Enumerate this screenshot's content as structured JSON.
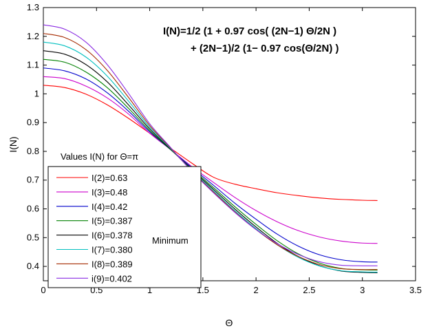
{
  "chart_data": {
    "type": "line",
    "title": "",
    "xlabel": "Θ",
    "ylabel": "I(N)",
    "xlim": [
      0,
      3.5
    ],
    "ylim": [
      0.35,
      1.3
    ],
    "xticks": [
      "0",
      "0.5",
      "1",
      "1.5",
      "2",
      "2.5",
      "3",
      "3.5"
    ],
    "yticks": [
      "0.4",
      "0.5",
      "0.6",
      "0.7",
      "0.8",
      "0.9",
      "1",
      "1.1",
      "1.2",
      "1.3"
    ],
    "grid": false,
    "legend_placement": "lower-left",
    "legend_title": "Values I(N) for Θ=π",
    "annotations": {
      "formula_line1": "I(N)=1/2 (1 + 0.97 cos( (2N−1) Θ/2N )",
      "formula_line2": "+ (2N−1)/2 (1− 0.97 cos(Θ/2N) )",
      "minimum_note": "Minimum"
    },
    "x": [
      0,
      0.2,
      0.4,
      0.6,
      0.8,
      1.0,
      1.2,
      1.4,
      1.6,
      1.8,
      2.0,
      2.2,
      2.4,
      2.6,
      2.8,
      3.0,
      3.1416
    ],
    "series": [
      {
        "name": "I(2)=0.63",
        "color": "#ff0000",
        "values": [
          1.03,
          1.022,
          0.999,
          0.962,
          0.915,
          0.863,
          0.81,
          0.758,
          0.71,
          0.686,
          0.67,
          0.656,
          0.646,
          0.638,
          0.633,
          0.63,
          0.629
        ]
      },
      {
        "name": "I(3)=0.48",
        "color": "#cc00cc",
        "values": [
          1.06,
          1.053,
          1.027,
          0.986,
          0.93,
          0.863,
          0.805,
          0.746,
          0.692,
          0.64,
          0.594,
          0.555,
          0.524,
          0.502,
          0.488,
          0.481,
          0.48
        ]
      },
      {
        "name": "I(4)=0.42",
        "color": "#0000cc",
        "values": [
          1.09,
          1.08,
          1.052,
          1.004,
          0.94,
          0.868,
          0.805,
          0.742,
          0.682,
          0.62,
          0.564,
          0.512,
          0.47,
          0.44,
          0.423,
          0.416,
          0.415
        ]
      },
      {
        "name": "I(5)=0.387",
        "color": "#008000",
        "values": [
          1.12,
          1.11,
          1.076,
          1.022,
          0.95,
          0.872,
          0.805,
          0.738,
          0.674,
          0.608,
          0.546,
          0.489,
          0.443,
          0.411,
          0.393,
          0.388,
          0.387
        ]
      },
      {
        "name": "I(6)=0.378",
        "color": "#000000",
        "values": [
          1.15,
          1.138,
          1.102,
          1.042,
          0.962,
          0.878,
          0.806,
          0.735,
          0.668,
          0.6,
          0.537,
          0.48,
          0.434,
          0.402,
          0.384,
          0.379,
          0.378
        ]
      },
      {
        "name": "I(7)=0.380",
        "color": "#00bfbf",
        "values": [
          1.18,
          1.167,
          1.128,
          1.062,
          0.975,
          0.884,
          0.808,
          0.732,
          0.663,
          0.594,
          0.531,
          0.475,
          0.431,
          0.401,
          0.385,
          0.381,
          0.38
        ]
      },
      {
        "name": "I(8)=0.389",
        "color": "#a52a00",
        "values": [
          1.21,
          1.196,
          1.154,
          1.082,
          0.988,
          0.89,
          0.81,
          0.73,
          0.659,
          0.59,
          0.528,
          0.475,
          0.434,
          0.406,
          0.392,
          0.389,
          0.389
        ]
      },
      {
        "name": "i(9)=0.402",
        "color": "#8a2be2",
        "values": [
          1.24,
          1.225,
          1.18,
          1.102,
          1.002,
          0.896,
          0.812,
          0.729,
          0.656,
          0.588,
          0.528,
          0.479,
          0.441,
          0.416,
          0.404,
          0.402,
          0.402
        ]
      }
    ]
  }
}
